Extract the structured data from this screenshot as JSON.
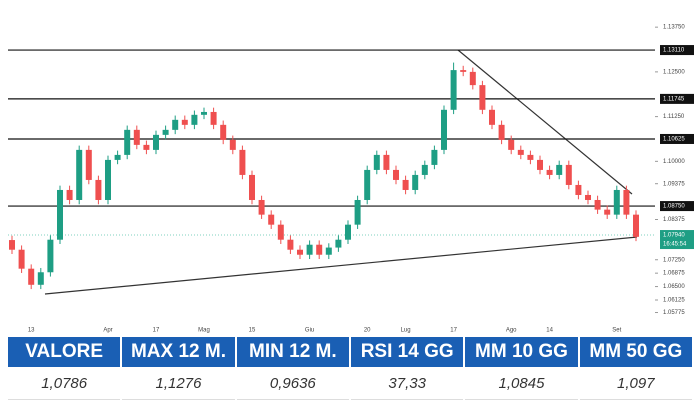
{
  "chart_data": {
    "type": "candlestick",
    "categories": [
      null,
      null,
      "13",
      null,
      null,
      null,
      null,
      null,
      null,
      null,
      "Apr",
      null,
      null,
      null,
      null,
      "17",
      null,
      null,
      null,
      null,
      "Mag",
      null,
      null,
      null,
      null,
      "15",
      null,
      null,
      null,
      null,
      null,
      "Giu",
      null,
      null,
      null,
      null,
      null,
      "20",
      null,
      null,
      null,
      "Lug",
      null,
      null,
      null,
      null,
      "17",
      null,
      null,
      null,
      null,
      null,
      "Ago",
      null,
      null,
      null,
      "14",
      null,
      null,
      null,
      null,
      null,
      null,
      "Set",
      null,
      null
    ],
    "open": [
      1.078,
      1.0753,
      1.07,
      1.0655,
      1.069,
      1.0781,
      1.092,
      1.0892,
      1.1032,
      1.0948,
      1.0892,
      1.1004,
      1.1018,
      1.1088,
      1.1046,
      1.1032,
      1.1074,
      1.1088,
      1.1116,
      1.1102,
      1.113,
      1.1138,
      1.1102,
      1.106,
      1.1032,
      1.0962,
      1.0892,
      1.0851,
      1.0823,
      1.0781,
      1.0753,
      1.0739,
      1.0767,
      1.0739,
      1.0759,
      1.0781,
      1.0823,
      1.0892,
      1.0976,
      1.1018,
      1.0976,
      1.0948,
      1.092,
      1.0962,
      1.099,
      1.1032,
      1.1144,
      1.1255,
      1.125,
      1.1213,
      1.1144,
      1.1102,
      1.106,
      1.1032,
      1.1018,
      1.1004,
      1.0976,
      1.0962,
      1.099,
      1.0934,
      1.0906,
      1.0892,
      1.0865,
      1.0851,
      1.092,
      1.0851
    ],
    "high": [
      1.0792,
      1.0765,
      1.0712,
      1.0702,
      1.0793,
      1.0932,
      1.0932,
      1.1044,
      1.1044,
      1.096,
      1.1016,
      1.103,
      1.11,
      1.11,
      1.1058,
      1.1086,
      1.11,
      1.1128,
      1.1128,
      1.1142,
      1.115,
      1.115,
      1.1114,
      1.1072,
      1.1044,
      1.0974,
      1.0904,
      1.0863,
      1.0835,
      1.0793,
      1.0765,
      1.0779,
      1.0779,
      1.0771,
      1.0793,
      1.0835,
      1.0904,
      1.0988,
      1.103,
      1.103,
      1.0988,
      1.096,
      1.0974,
      1.1002,
      1.1044,
      1.1156,
      1.1276,
      1.1267,
      1.1262,
      1.1225,
      1.1156,
      1.1114,
      1.1072,
      1.1044,
      1.103,
      1.1016,
      1.0988,
      1.1002,
      1.1002,
      1.0946,
      1.0918,
      1.0904,
      1.0877,
      1.0932,
      1.0932,
      1.0863
    ],
    "low": [
      1.0741,
      1.0688,
      1.0643,
      1.0643,
      1.0678,
      1.0769,
      1.088,
      1.088,
      1.0936,
      1.088,
      1.088,
      1.0992,
      1.1006,
      1.1034,
      1.102,
      1.102,
      1.1062,
      1.1076,
      1.109,
      1.109,
      1.1118,
      1.109,
      1.1048,
      1.102,
      1.095,
      1.088,
      1.0839,
      1.0811,
      1.0769,
      1.0741,
      1.0727,
      1.0727,
      1.0727,
      1.0727,
      1.0747,
      1.0769,
      1.0811,
      1.088,
      1.0964,
      1.0964,
      1.0936,
      1.0908,
      1.0908,
      1.095,
      1.0978,
      1.102,
      1.1132,
      1.1238,
      1.1201,
      1.1132,
      1.109,
      1.1048,
      1.102,
      1.1006,
      1.0992,
      1.0964,
      1.095,
      1.095,
      1.0922,
      1.0894,
      1.088,
      1.0853,
      1.0839,
      1.0839,
      1.0839,
      1.0777
    ],
    "close": [
      1.0753,
      1.07,
      1.0655,
      1.069,
      1.0781,
      1.092,
      1.0892,
      1.1032,
      1.0948,
      1.0892,
      1.1004,
      1.1018,
      1.1088,
      1.1046,
      1.1032,
      1.1074,
      1.1088,
      1.1116,
      1.1102,
      1.113,
      1.1138,
      1.1102,
      1.106,
      1.1032,
      1.0962,
      1.0892,
      1.0851,
      1.0823,
      1.0781,
      1.0753,
      1.0739,
      1.0767,
      1.0739,
      1.0759,
      1.0781,
      1.0823,
      1.0892,
      1.0976,
      1.1018,
      1.0976,
      1.0948,
      1.092,
      1.0962,
      1.099,
      1.1032,
      1.1144,
      1.1255,
      1.125,
      1.1213,
      1.1144,
      1.1102,
      1.106,
      1.1032,
      1.1018,
      1.1004,
      1.0976,
      1.0962,
      1.099,
      1.0934,
      1.0906,
      1.0892,
      1.0865,
      1.0851,
      1.092,
      1.0851,
      1.0789
    ],
    "up_color": "#1e9e84",
    "down_color": "#ef4f4f",
    "ylim": [
      1.0551,
      1.1395
    ],
    "yticks": [
      {
        "value": 1.1375,
        "label": "1.13750"
      },
      {
        "value": 1.125,
        "label": "1.12500"
      },
      {
        "value": 1.1125,
        "label": "1.11250"
      },
      {
        "value": 1.1,
        "label": "1.10000"
      },
      {
        "value": 1.09375,
        "label": "1.09375"
      },
      {
        "value": 1.08375,
        "label": "1.08375"
      },
      {
        "value": 1.0725,
        "label": "1.07250"
      },
      {
        "value": 1.06875,
        "label": "1.06875"
      },
      {
        "value": 1.065,
        "label": "1.06500"
      },
      {
        "value": 1.06125,
        "label": "1.06125"
      },
      {
        "value": 1.05775,
        "label": "1.05775"
      }
    ],
    "levels": [
      {
        "value": 1.1311,
        "label": "1.13110"
      },
      {
        "value": 1.11745,
        "label": "1.11745"
      },
      {
        "value": 1.10625,
        "label": "1.10625"
      },
      {
        "value": 1.0875,
        "label": "1.08750"
      }
    ],
    "current_price": {
      "value": 1.0794,
      "label": "1.07940"
    },
    "countdown": "16:45:54"
  },
  "table": {
    "headers": [
      "VALORE",
      "MAX 12 M.",
      "MIN 12 M.",
      "RSI 14 GG",
      "MM 10 GG",
      "MM 50 GG"
    ],
    "rows": [
      [
        "1,0786",
        "1,1276",
        "0,9636",
        "37,33",
        "1,0845",
        "1,097"
      ]
    ]
  }
}
